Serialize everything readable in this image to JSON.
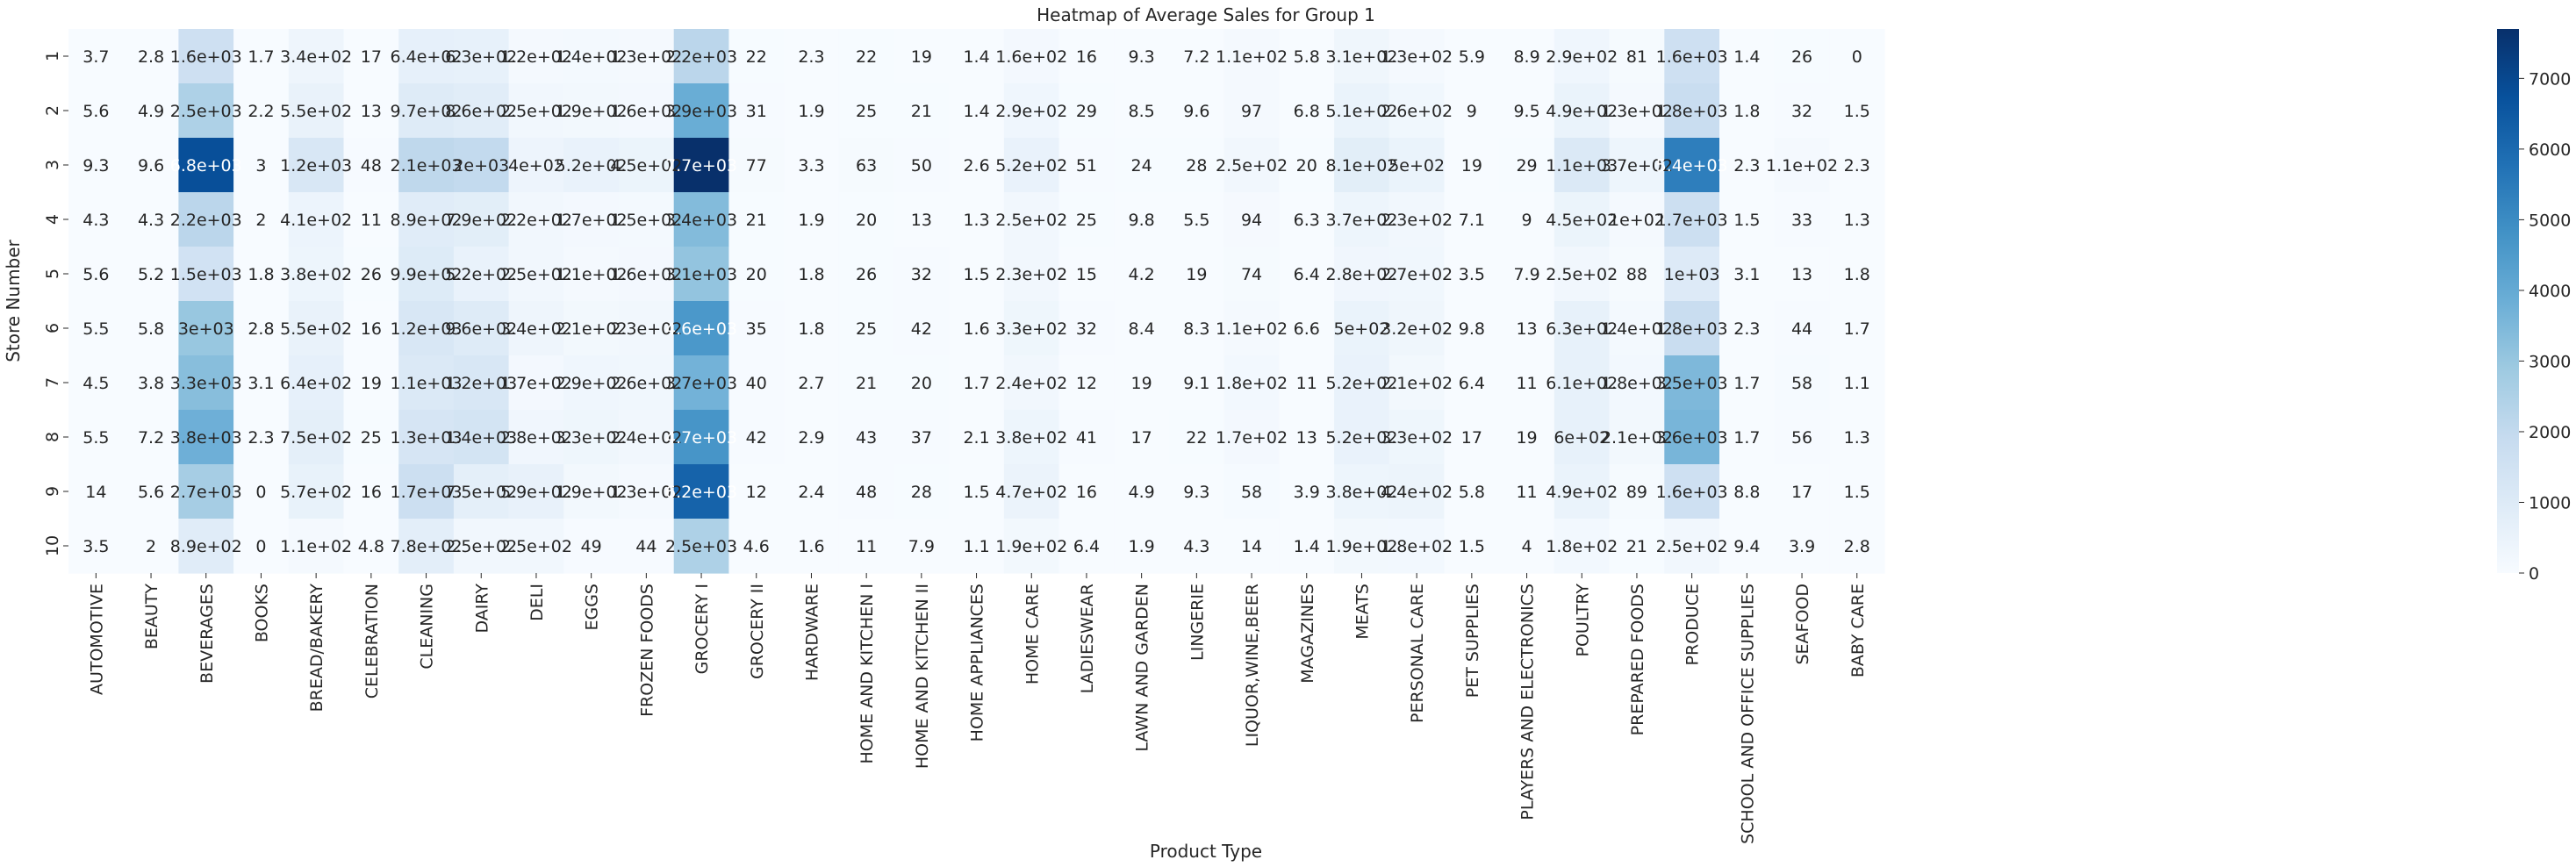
{
  "chart_data": {
    "type": "heatmap",
    "title": "Heatmap of Average Sales for Group 1",
    "xlabel": "Product Type",
    "ylabel": "Store Number",
    "rows": [
      "1",
      "2",
      "3",
      "4",
      "5",
      "6",
      "7",
      "8",
      "9",
      "10"
    ],
    "columns": [
      "AUTOMOTIVE",
      "BEAUTY",
      "BEVERAGES",
      "BOOKS",
      "BREAD/BAKERY",
      "CELEBRATION",
      "CLEANING",
      "DAIRY",
      "DELI",
      "EGGS",
      "FROZEN FOODS",
      "GROCERY I",
      "GROCERY II",
      "HARDWARE",
      "HOME AND KITCHEN I",
      "HOME AND KITCHEN II",
      "HOME APPLIANCES",
      "HOME CARE",
      "LADIESWEAR",
      "LAWN AND GARDEN",
      "LINGERIE",
      "LIQUOR,WINE,BEER",
      "MAGAZINES",
      "MEATS",
      "PERSONAL CARE",
      "PET SUPPLIES",
      "PLAYERS AND ELECTRONICS",
      "POULTRY",
      "PREPARED FOODS",
      "PRODUCE",
      "SCHOOL AND OFFICE SUPPLIES",
      "SEAFOOD",
      "BABY CARE"
    ],
    "values": [
      [
        3.7,
        2.8,
        1600,
        1.7,
        340,
        17,
        640,
        630,
        120,
        140,
        130,
        2200,
        22,
        2.3,
        22,
        19,
        1.4,
        160,
        16,
        9.3,
        7.2,
        110,
        5.8,
        310,
        130,
        5.9,
        8.9,
        290,
        81,
        1600,
        1.4,
        26,
        0
      ],
      [
        5.6,
        4.9,
        2500,
        2.2,
        550,
        13,
        970,
        860,
        250,
        190,
        160,
        3900,
        31,
        1.9,
        25,
        21,
        1.4,
        290,
        29,
        8.5,
        9.6,
        97,
        6.8,
        510,
        260,
        9,
        9.5,
        490,
        130,
        1800,
        1.8,
        32,
        1.5
      ],
      [
        9.3,
        9.6,
        6800,
        3,
        1200,
        48,
        2100,
        2000,
        400,
        520,
        450,
        7700,
        77,
        3.3,
        63,
        50,
        2.6,
        520,
        51,
        24,
        28,
        250,
        20,
        810,
        500,
        19,
        29,
        1100,
        370,
        5400,
        2.3,
        110,
        2.3
      ],
      [
        4.3,
        4.3,
        2200,
        2,
        410,
        11,
        890,
        790,
        220,
        170,
        150,
        3400,
        21,
        1.9,
        20,
        13,
        1.3,
        250,
        25,
        9.8,
        5.5,
        94,
        6.3,
        370,
        230,
        7.1,
        9,
        450,
        100,
        1700,
        1.5,
        33,
        1.3
      ],
      [
        5.6,
        5.2,
        1500,
        1.8,
        380,
        26,
        990,
        520,
        250,
        110,
        160,
        3100,
        20,
        1.8,
        26,
        32,
        1.5,
        230,
        15,
        4.2,
        19,
        74,
        6.4,
        280,
        270,
        3.5,
        7.9,
        250,
        88,
        1000,
        3.1,
        13,
        1.8
      ],
      [
        5.5,
        5.8,
        3000,
        2.8,
        550,
        16,
        1200,
        960,
        340,
        210,
        230,
        4600,
        35,
        1.8,
        25,
        42,
        1.6,
        330,
        32,
        8.4,
        8.3,
        110,
        6.6,
        500,
        320,
        9.8,
        13,
        630,
        140,
        1800,
        2.3,
        44,
        1.7
      ],
      [
        4.5,
        3.8,
        3300,
        3.1,
        640,
        19,
        1100,
        1200,
        170,
        290,
        260,
        3700,
        40,
        2.7,
        21,
        20,
        1.7,
        240,
        12,
        19,
        9.1,
        180,
        11,
        520,
        210,
        6.4,
        11,
        610,
        180,
        3500,
        1.7,
        58,
        1.1
      ],
      [
        5.5,
        7.2,
        3800,
        2.3,
        750,
        25,
        1300,
        1400,
        280,
        330,
        240,
        4700,
        42,
        2.9,
        43,
        37,
        2.1,
        380,
        41,
        17,
        22,
        170,
        13,
        520,
        330,
        17,
        19,
        600,
        210,
        3600,
        1.7,
        56,
        1.3
      ],
      [
        14,
        5.6,
        2700,
        0,
        570,
        16,
        1700,
        750,
        590,
        190,
        130,
        6200,
        12,
        2.4,
        48,
        28,
        1.5,
        470,
        16,
        4.9,
        9.3,
        58,
        3.9,
        380,
        440,
        5.8,
        11,
        490,
        89,
        1600,
        8.8,
        17,
        1.5
      ],
      [
        3.5,
        2,
        890,
        0,
        110,
        4.8,
        780,
        250,
        250,
        49,
        44,
        2500,
        4.6,
        1.6,
        11,
        7.9,
        1.1,
        190,
        6.4,
        1.9,
        4.3,
        14,
        1.4,
        190,
        180,
        1.5,
        4,
        180,
        21,
        250,
        9.4,
        3.9,
        2.8
      ]
    ],
    "annotations": [
      [
        "3.7",
        "2.8",
        "1.6e+03",
        "1.7",
        "3.4e+02",
        "17",
        "6.4e+02",
        "6.3e+02",
        "1.2e+02",
        "1.4e+02",
        "1.3e+02",
        "2.2e+03",
        "22",
        "2.3",
        "22",
        "19",
        "1.4",
        "1.6e+02",
        "16",
        "9.3",
        "7.2",
        "1.1e+02",
        "5.8",
        "3.1e+02",
        "1.3e+02",
        "5.9",
        "8.9",
        "2.9e+02",
        "81",
        "1.6e+03",
        "1.4",
        "26",
        "0"
      ],
      [
        "5.6",
        "4.9",
        "2.5e+03",
        "2.2",
        "5.5e+02",
        "13",
        "9.7e+02",
        "8.6e+02",
        "2.5e+02",
        "1.9e+02",
        "1.6e+02",
        "3.9e+03",
        "31",
        "1.9",
        "25",
        "21",
        "1.4",
        "2.9e+02",
        "29",
        "8.5",
        "9.6",
        "97",
        "6.8",
        "5.1e+02",
        "2.6e+02",
        "9",
        "9.5",
        "4.9e+02",
        "1.3e+02",
        "1.8e+03",
        "1.8",
        "32",
        "1.5"
      ],
      [
        "9.3",
        "9.6",
        "6.8e+03",
        "3",
        "1.2e+03",
        "48",
        "2.1e+03",
        "2e+03",
        "4e+02",
        "5.2e+02",
        "4.5e+02",
        "7.7e+03",
        "77",
        "3.3",
        "63",
        "50",
        "2.6",
        "5.2e+02",
        "51",
        "24",
        "28",
        "2.5e+02",
        "20",
        "8.1e+02",
        "5e+02",
        "19",
        "29",
        "1.1e+03",
        "3.7e+02",
        "5.4e+03",
        "2.3",
        "1.1e+02",
        "2.3"
      ],
      [
        "4.3",
        "4.3",
        "2.2e+03",
        "2",
        "4.1e+02",
        "11",
        "8.9e+02",
        "7.9e+02",
        "2.2e+02",
        "1.7e+02",
        "1.5e+02",
        "3.4e+03",
        "21",
        "1.9",
        "20",
        "13",
        "1.3",
        "2.5e+02",
        "25",
        "9.8",
        "5.5",
        "94",
        "6.3",
        "3.7e+02",
        "2.3e+02",
        "7.1",
        "9",
        "4.5e+02",
        "1e+02",
        "1.7e+03",
        "1.5",
        "33",
        "1.3"
      ],
      [
        "5.6",
        "5.2",
        "1.5e+03",
        "1.8",
        "3.8e+02",
        "26",
        "9.9e+02",
        "5.2e+02",
        "2.5e+02",
        "1.1e+02",
        "1.6e+02",
        "3.1e+03",
        "20",
        "1.8",
        "26",
        "32",
        "1.5",
        "2.3e+02",
        "15",
        "4.2",
        "19",
        "74",
        "6.4",
        "2.8e+02",
        "2.7e+02",
        "3.5",
        "7.9",
        "2.5e+02",
        "88",
        "1e+03",
        "3.1",
        "13",
        "1.8"
      ],
      [
        "5.5",
        "5.8",
        "3e+03",
        "2.8",
        "5.5e+02",
        "16",
        "1.2e+03",
        "9.6e+02",
        "3.4e+02",
        "2.1e+02",
        "2.3e+02",
        "4.6e+03",
        "35",
        "1.8",
        "25",
        "42",
        "1.6",
        "3.3e+02",
        "32",
        "8.4",
        "8.3",
        "1.1e+02",
        "6.6",
        "5e+02",
        "3.2e+02",
        "9.8",
        "13",
        "6.3e+02",
        "1.4e+02",
        "1.8e+03",
        "2.3",
        "44",
        "1.7"
      ],
      [
        "4.5",
        "3.8",
        "3.3e+03",
        "3.1",
        "6.4e+02",
        "19",
        "1.1e+03",
        "1.2e+03",
        "1.7e+02",
        "2.9e+02",
        "2.6e+02",
        "3.7e+03",
        "40",
        "2.7",
        "21",
        "20",
        "1.7",
        "2.4e+02",
        "12",
        "19",
        "9.1",
        "1.8e+02",
        "11",
        "5.2e+02",
        "2.1e+02",
        "6.4",
        "11",
        "6.1e+02",
        "1.8e+02",
        "3.5e+03",
        "1.7",
        "58",
        "1.1"
      ],
      [
        "5.5",
        "7.2",
        "3.8e+03",
        "2.3",
        "7.5e+02",
        "25",
        "1.3e+03",
        "1.4e+03",
        "2.8e+02",
        "3.3e+02",
        "2.4e+02",
        "4.7e+03",
        "42",
        "2.9",
        "43",
        "37",
        "2.1",
        "3.8e+02",
        "41",
        "17",
        "22",
        "1.7e+02",
        "13",
        "5.2e+02",
        "3.3e+02",
        "17",
        "19",
        "6e+02",
        "2.1e+02",
        "3.6e+03",
        "1.7",
        "56",
        "1.3"
      ],
      [
        "14",
        "5.6",
        "2.7e+03",
        "0",
        "5.7e+02",
        "16",
        "1.7e+03",
        "7.5e+02",
        "5.9e+02",
        "1.9e+02",
        "1.3e+02",
        "6.2e+03",
        "12",
        "2.4",
        "48",
        "28",
        "1.5",
        "4.7e+02",
        "16",
        "4.9",
        "9.3",
        "58",
        "3.9",
        "3.8e+02",
        "4.4e+02",
        "5.8",
        "11",
        "4.9e+02",
        "89",
        "1.6e+03",
        "8.8",
        "17",
        "1.5"
      ],
      [
        "3.5",
        "2",
        "8.9e+02",
        "0",
        "1.1e+02",
        "4.8",
        "7.8e+02",
        "2.5e+02",
        "2.5e+02",
        "49",
        "44",
        "2.5e+03",
        "4.6",
        "1.6",
        "11",
        "7.9",
        "1.1",
        "1.9e+02",
        "6.4",
        "1.9",
        "4.3",
        "14",
        "1.4",
        "1.9e+02",
        "1.8e+02",
        "1.5",
        "4",
        "1.8e+02",
        "21",
        "2.5e+02",
        "9.4",
        "3.9",
        "2.8"
      ]
    ],
    "colorbar": {
      "colormap": "Blues",
      "range": [
        0,
        7700
      ],
      "ticks": [
        "0",
        "1000",
        "2000",
        "3000",
        "4000",
        "5000",
        "6000",
        "7000"
      ]
    },
    "grid": false
  }
}
